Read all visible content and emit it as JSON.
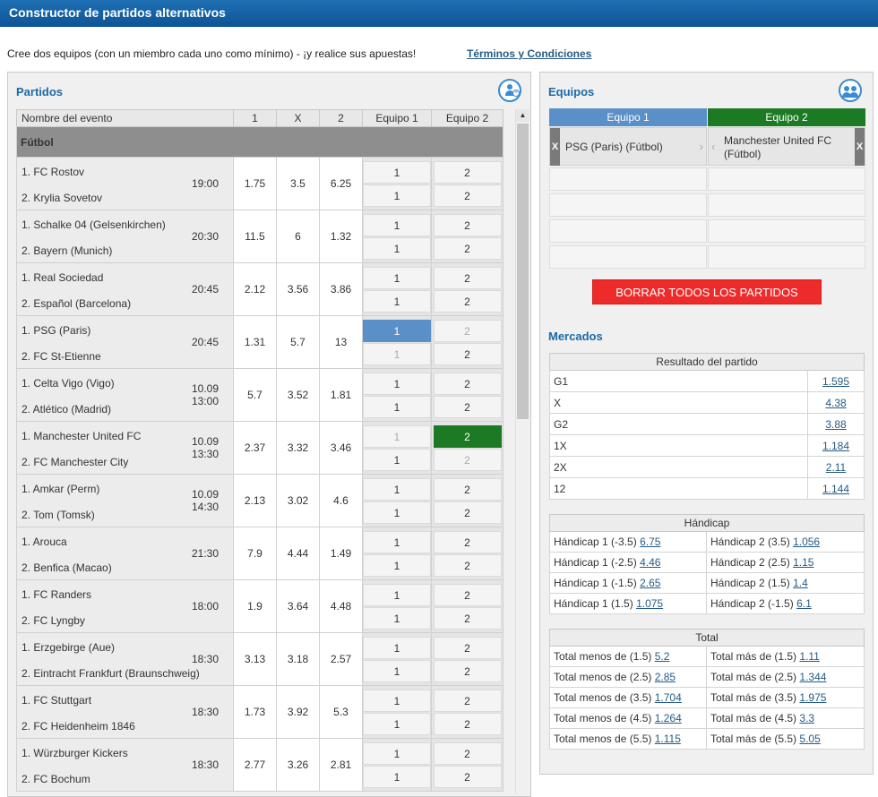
{
  "title": "Constructor de partidos alternativos",
  "intro": "Cree dos equipos (con un miembro cada uno como mínimo) - ¡y realice sus apuestas!",
  "terms_link": "Términos y Condiciones",
  "left": {
    "title": "Partidos",
    "headers": {
      "name": "Nombre del evento",
      "h1": "1",
      "hx": "X",
      "h2": "2",
      "team1": "Equipo 1",
      "team2": "Equipo 2"
    },
    "sport": "Fútbol",
    "events": [
      {
        "home": "1. FC Rostov",
        "away": "2. Krylia Sovetov",
        "date": "",
        "time": "19:00",
        "o1": "1.75",
        "ox": "3.5",
        "o2": "6.25",
        "e1a": "1",
        "e1b": "1",
        "e2a": "2",
        "e2b": "2"
      },
      {
        "home": "1. Schalke 04 (Gelsenkirchen)",
        "away": "2. Bayern (Munich)",
        "date": "",
        "time": "20:30",
        "o1": "11.5",
        "ox": "6",
        "o2": "1.32",
        "e1a": "1",
        "e1b": "1",
        "e2a": "2",
        "e2b": "2"
      },
      {
        "home": "1. Real Sociedad",
        "away": "2. Español (Barcelona)",
        "date": "",
        "time": "20:45",
        "o1": "2.12",
        "ox": "3.56",
        "o2": "3.86",
        "e1a": "1",
        "e1b": "1",
        "e2a": "2",
        "e2b": "2"
      },
      {
        "home": "1. PSG (Paris)",
        "away": "2. FC St-Etienne",
        "date": "",
        "time": "20:45",
        "o1": "1.31",
        "ox": "5.7",
        "o2": "13",
        "e1a": "1",
        "e1b": "1",
        "e2a": "2",
        "e2b": "2"
      },
      {
        "home": "1. Celta Vigo (Vigo)",
        "away": "2. Atlético (Madrid)",
        "date": "10.09",
        "time": "13:00",
        "o1": "5.7",
        "ox": "3.52",
        "o2": "1.81",
        "e1a": "1",
        "e1b": "1",
        "e2a": "2",
        "e2b": "2"
      },
      {
        "home": "1. Manchester United FC",
        "away": "2. FC Manchester City",
        "date": "10.09",
        "time": "13:30",
        "o1": "2.37",
        "ox": "3.32",
        "o2": "3.46",
        "e1a": "1",
        "e1b": "1",
        "e2a": "2",
        "e2b": "2"
      },
      {
        "home": "1. Amkar (Perm)",
        "away": "2. Tom (Tomsk)",
        "date": "10.09",
        "time": "14:30",
        "o1": "2.13",
        "ox": "3.02",
        "o2": "4.6",
        "e1a": "1",
        "e1b": "1",
        "e2a": "2",
        "e2b": "2"
      },
      {
        "home": "1. Arouca",
        "away": "2. Benfica (Macao)",
        "date": "",
        "time": "21:30",
        "o1": "7.9",
        "ox": "4.44",
        "o2": "1.49",
        "e1a": "1",
        "e1b": "1",
        "e2a": "2",
        "e2b": "2"
      },
      {
        "home": "1. FC Randers",
        "away": "2. FC Lyngby",
        "date": "",
        "time": "18:00",
        "o1": "1.9",
        "ox": "3.64",
        "o2": "4.48",
        "e1a": "1",
        "e1b": "1",
        "e2a": "2",
        "e2b": "2"
      },
      {
        "home": "1. Erzgebirge (Aue)",
        "away": "2. Eintracht Frankfurt (Braunschweig)",
        "date": "",
        "time": "18:30",
        "o1": "3.13",
        "ox": "3.18",
        "o2": "2.57",
        "e1a": "1",
        "e1b": "1",
        "e2a": "2",
        "e2b": "2"
      },
      {
        "home": "1. FC Stuttgart",
        "away": "2. FC Heidenheim 1846",
        "date": "",
        "time": "18:30",
        "o1": "1.73",
        "ox": "3.92",
        "o2": "5.3",
        "e1a": "1",
        "e1b": "1",
        "e2a": "2",
        "e2b": "2"
      },
      {
        "home": "1. Würzburger Kickers",
        "away": "2. FC Bochum",
        "date": "",
        "time": "18:30",
        "o1": "2.77",
        "ox": "3.26",
        "o2": "2.81",
        "e1a": "1",
        "e1b": "1",
        "e2a": "2",
        "e2b": "2"
      }
    ]
  },
  "right": {
    "title": "Equipos",
    "team1_label": "Equipo 1",
    "team2_label": "Equipo 2",
    "team1_member": "PSG (Paris) (Fútbol)",
    "team2_member": "Manchester United FC (Fútbol)",
    "remove_glyph": "X",
    "clear_all": "BORRAR TODOS LOS PARTIDOS",
    "markets_title": "Mercados",
    "result": {
      "header": "Resultado del partido",
      "rows": [
        {
          "label": "G1",
          "odd": "1.595"
        },
        {
          "label": "X",
          "odd": "4.38"
        },
        {
          "label": "G2",
          "odd": "3.88"
        },
        {
          "label": "1X",
          "odd": "1.184"
        },
        {
          "label": "2X",
          "odd": "2.11"
        },
        {
          "label": "12",
          "odd": "1.144"
        }
      ]
    },
    "handicap": {
      "header": "Hándicap",
      "rows": [
        {
          "l1": "Hándicap 1 (-3.5)",
          "o1": "6.75",
          "l2": "Hándicap 2 (3.5)",
          "o2": "1.056"
        },
        {
          "l1": "Hándicap 1 (-2.5)",
          "o1": "4.46",
          "l2": "Hándicap 2 (2.5)",
          "o2": "1.15"
        },
        {
          "l1": "Hándicap 1 (-1.5)",
          "o1": "2.65",
          "l2": "Hándicap 2 (1.5)",
          "o2": "1.4"
        },
        {
          "l1": "Hándicap 1 (1.5)",
          "o1": "1.075",
          "l2": "Hándicap 2 (-1.5)",
          "o2": "6.1"
        }
      ]
    },
    "total": {
      "header": "Total",
      "rows": [
        {
          "l1": "Total menos de (1.5)",
          "o1": "5.2",
          "l2": "Total más de (1.5)",
          "o2": "1.11"
        },
        {
          "l1": "Total menos de (2.5)",
          "o1": "2.85",
          "l2": "Total más de (2.5)",
          "o2": "1.344"
        },
        {
          "l1": "Total menos de (3.5)",
          "o1": "1.704",
          "l2": "Total más de (3.5)",
          "o2": "1.975"
        },
        {
          "l1": "Total menos de (4.5)",
          "o1": "1.264",
          "l2": "Total más de (4.5)",
          "o2": "3.3"
        },
        {
          "l1": "Total menos de (5.5)",
          "o1": "1.115",
          "l2": "Total más de (5.5)",
          "o2": "5.05"
        }
      ]
    }
  },
  "colors": {
    "accent": "#1a6aa8",
    "team1": "#5b8fc8",
    "team2": "#1c7a24",
    "clear": "#ee2b2b"
  }
}
